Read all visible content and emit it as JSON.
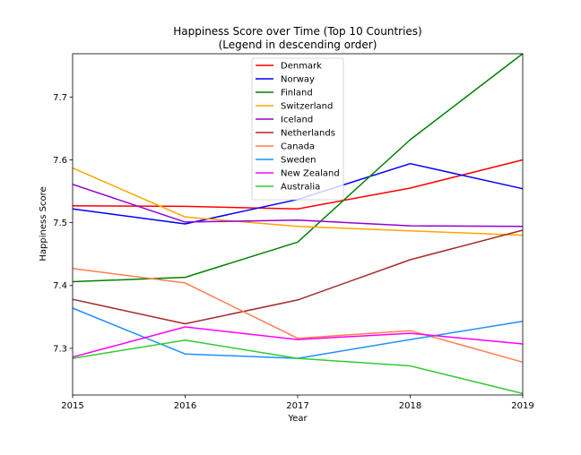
{
  "chart_data": {
    "type": "line",
    "title_line1": "Happiness Score over Time (Top 10 Countries)",
    "title_line2": "(Legend in descending order)",
    "xlabel": "Year",
    "ylabel": "Happiness Score",
    "x": [
      2015,
      2016,
      2017,
      2018,
      2019
    ],
    "x_tick_labels": [
      "2015",
      "2016",
      "2017",
      "2018",
      "2019"
    ],
    "xlim": [
      2015,
      2019
    ],
    "ylim": [
      7.2257,
      7.7689
    ],
    "y_ticks": [
      7.3,
      7.4,
      7.5,
      7.6,
      7.7
    ],
    "y_tick_labels": [
      "7.3",
      "7.4",
      "7.5",
      "7.6",
      "7.7"
    ],
    "legend_position": "top-center",
    "grid": false,
    "series": [
      {
        "name": "Denmark",
        "color": "#ff0000",
        "values": [
          7.527,
          7.526,
          7.522,
          7.555,
          7.6
        ]
      },
      {
        "name": "Norway",
        "color": "#0000ff",
        "values": [
          7.522,
          7.498,
          7.537,
          7.594,
          7.554
        ]
      },
      {
        "name": "Finland",
        "color": "#008000",
        "values": [
          7.406,
          7.413,
          7.469,
          7.632,
          7.769
        ]
      },
      {
        "name": "Switzerland",
        "color": "#ffa500",
        "values": [
          7.587,
          7.509,
          7.494,
          7.487,
          7.48
        ]
      },
      {
        "name": "Iceland",
        "color": "#9400d3",
        "values": [
          7.561,
          7.501,
          7.504,
          7.495,
          7.494
        ]
      },
      {
        "name": "Netherlands",
        "color": "#a52a2a",
        "values": [
          7.378,
          7.339,
          7.377,
          7.441,
          7.488
        ]
      },
      {
        "name": "Canada",
        "color": "#ff7f50",
        "values": [
          7.427,
          7.404,
          7.316,
          7.328,
          7.278
        ]
      },
      {
        "name": "Sweden",
        "color": "#1e90ff",
        "values": [
          7.364,
          7.291,
          7.284,
          7.314,
          7.343
        ]
      },
      {
        "name": "New Zealand",
        "color": "#ff00ff",
        "values": [
          7.286,
          7.334,
          7.314,
          7.324,
          7.307
        ]
      },
      {
        "name": "Australia",
        "color": "#32cd32",
        "values": [
          7.284,
          7.313,
          7.284,
          7.272,
          7.228
        ]
      }
    ]
  }
}
